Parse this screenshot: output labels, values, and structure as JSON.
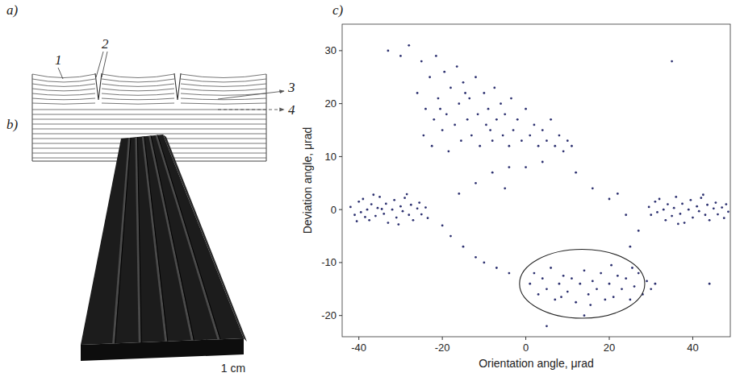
{
  "figure": {
    "a": {
      "label": "a)",
      "callouts": [
        "1",
        "2",
        "3",
        "4"
      ]
    },
    "b": {
      "label": "b)",
      "scale_bar": "1 cm"
    },
    "c": {
      "label": "c)"
    }
  },
  "chart_data": {
    "type": "scatter",
    "xlabel": "Orientation angle, μrad",
    "ylabel": "Deviation angle, μrad",
    "xlim": [
      -44,
      49
    ],
    "ylim": [
      -24,
      35
    ],
    "xticks": [
      -40,
      -20,
      0,
      20,
      40
    ],
    "yticks": [
      -20,
      -10,
      0,
      10,
      20,
      30
    ],
    "grid": false,
    "color": "#2d3170",
    "marker": "circle",
    "annotations": [
      {
        "shape": "ellipse",
        "x": 13.5,
        "y": -14,
        "rx": 15,
        "ry": 6.5
      }
    ],
    "x": [
      -42,
      -41,
      -40,
      -39.5,
      -39,
      -38,
      -37.5,
      -37,
      -36,
      -35.5,
      -35,
      -34,
      -33.5,
      -33,
      -32,
      -31.5,
      -31,
      -30,
      -29.5,
      -29,
      -28,
      -27.5,
      -27,
      -26,
      -25.5,
      -25,
      -24,
      -23.5,
      -36.5,
      -30.5,
      -40.5,
      -28.5,
      -34.5,
      -38.5,
      29.5,
      30,
      31,
      31.5,
      32,
      33,
      33.5,
      34,
      35,
      35.5,
      36,
      37,
      37.5,
      38,
      39,
      39.5,
      40,
      41,
      41.5,
      42,
      43,
      43.5,
      44,
      45,
      45.5,
      46,
      47,
      47.5,
      48,
      48.5,
      36.5,
      42.5,
      -26,
      -25,
      -24.5,
      -24,
      -23,
      -22.5,
      -22,
      -21.5,
      -21,
      -20,
      -19.5,
      -19,
      -18.5,
      -18,
      -17,
      -16.5,
      -16,
      -15.5,
      -15,
      -14,
      -13.5,
      -13,
      -12,
      -11.5,
      -11,
      -10,
      -9.5,
      -9,
      -8,
      -7.5,
      -7,
      -6,
      -5.5,
      -5,
      -4,
      -3.5,
      -3,
      -2,
      -1,
      0,
      1,
      2,
      3,
      4,
      5,
      6,
      7,
      8,
      9,
      10,
      11,
      -20.5,
      -14.5,
      -8.5,
      1,
      2,
      3,
      4,
      5,
      6,
      7,
      8,
      9,
      10,
      11,
      12,
      13,
      14,
      15,
      16,
      17,
      18,
      19,
      20,
      21,
      22,
      23,
      24,
      25,
      26,
      27,
      28,
      29,
      30,
      31,
      15.5,
      20.5,
      8.5,
      25.5,
      -20,
      -18,
      -15,
      -12,
      -10,
      -7,
      -4,
      -16,
      -12,
      -8,
      -4,
      0,
      4,
      12,
      16,
      20,
      24,
      27,
      25,
      -30,
      -28,
      -33,
      35,
      44,
      5,
      14,
      -5,
      22
    ],
    "values": [
      0.5,
      -1,
      1.5,
      -0.5,
      2,
      0,
      -2,
      1,
      -1.2,
      0.3,
      2.4,
      -0.8,
      1.1,
      -2.5,
      0,
      1.8,
      -1.5,
      0.6,
      -0.3,
      2.2,
      -1,
      0.9,
      -2,
      0.2,
      1.3,
      -0.9,
      0.4,
      -1.6,
      2.8,
      -2.8,
      -2.2,
      2.9,
      0.1,
      -1.4,
      0.5,
      -1,
      1.5,
      -0.5,
      2,
      0,
      -2,
      1,
      -1.2,
      0.3,
      2.4,
      -0.8,
      1.1,
      -2.5,
      0,
      1.8,
      -1.5,
      0.6,
      -0.3,
      2.2,
      -1,
      0.9,
      -2,
      0.2,
      1.3,
      -0.9,
      0.4,
      -1.6,
      1,
      -0.4,
      -2.7,
      2.8,
      22,
      28,
      14,
      19,
      25,
      12,
      17,
      29,
      21,
      15,
      26,
      18,
      11,
      23,
      16,
      27,
      20,
      13,
      24,
      17,
      21,
      14,
      25,
      18,
      12,
      22,
      16,
      19,
      13,
      23,
      17,
      20,
      14,
      18,
      12,
      21,
      15,
      17,
      13,
      19,
      14,
      16,
      12,
      15,
      13,
      17,
      12,
      14,
      11,
      13,
      12,
      19,
      22,
      15,
      -14,
      -12,
      -16,
      -13,
      -15,
      -11,
      -17,
      -14,
      -12.5,
      -15.5,
      -13,
      -17.5,
      -14,
      -11.5,
      -16,
      -13.5,
      -15,
      -12,
      -17,
      -14,
      -16.5,
      -12.5,
      -15,
      -13,
      -17,
      -14.5,
      -12,
      -16,
      -13.5,
      -15,
      -14,
      -18,
      -10.5,
      -16.5,
      -11,
      -3,
      -5,
      -7,
      -9,
      -10,
      -11,
      -12,
      3,
      5,
      7,
      8,
      8,
      9,
      7,
      4,
      2,
      -1,
      -4,
      -7,
      29,
      31,
      30,
      28,
      -14,
      -22,
      -20,
      4,
      3
    ]
  }
}
